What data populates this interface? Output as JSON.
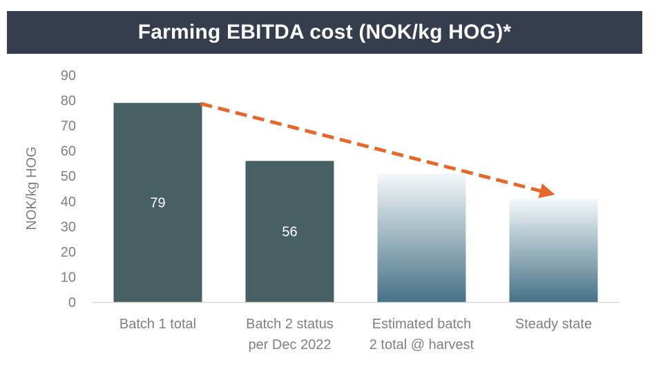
{
  "colors": {
    "title_bg": "#353d4e",
    "bar_solid": "#476064",
    "gradient_top": "#f4f8fa",
    "gradient_bottom": "#467186",
    "arrow": "#e5682a",
    "axis_text": "#7f7f7f"
  },
  "chart_data": {
    "type": "bar",
    "title": "Farming EBITDA cost (NOK/kg HOG)*",
    "xlabel": "",
    "ylabel": "NOK/kg HOG",
    "ylim": [
      0,
      90
    ],
    "yticks": [
      0,
      10,
      20,
      30,
      40,
      50,
      60,
      70,
      80,
      90
    ],
    "categories": [
      [
        "Batch 1 total"
      ],
      [
        "Batch 2 status",
        "per Dec 2022"
      ],
      [
        "Estimated batch",
        "2 total @ harvest"
      ],
      [
        "Steady state"
      ]
    ],
    "values": [
      79,
      56,
      51,
      41
    ],
    "data_labels": [
      "79",
      "56",
      "",
      ""
    ],
    "bar_styles": [
      "solid",
      "solid",
      "gradient",
      "gradient"
    ],
    "annotations": [
      {
        "type": "dashed-arrow",
        "from_category": 0,
        "from_value": 79,
        "to_category": 3,
        "to_value": 41
      }
    ]
  }
}
